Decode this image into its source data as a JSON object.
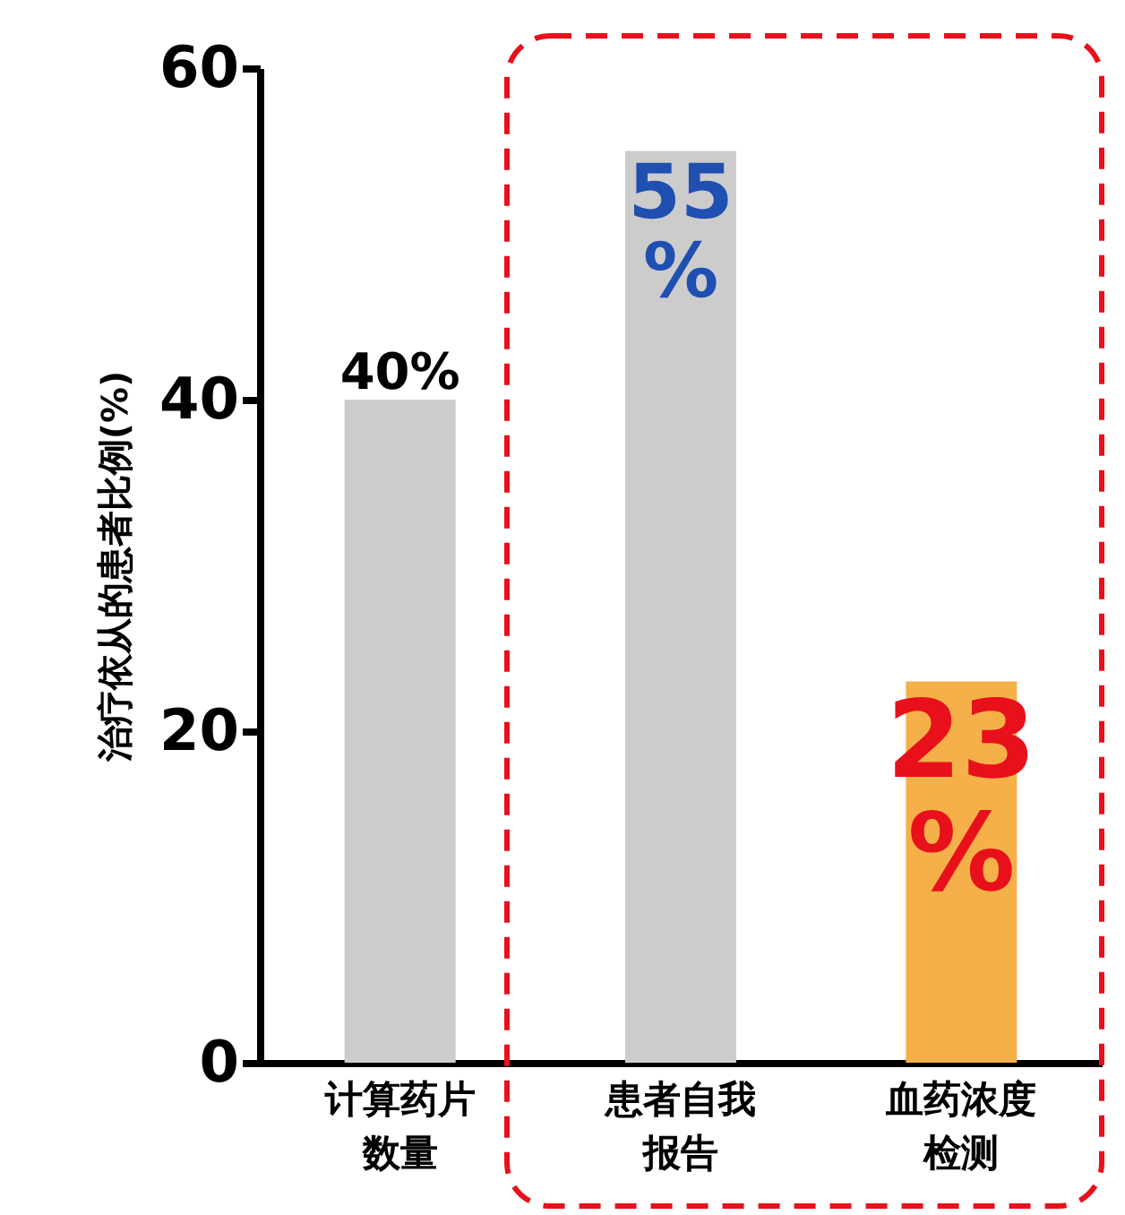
{
  "chart_data": {
    "type": "bar",
    "ylabel": "治疗依从的患者比例(%)",
    "categories": [
      "计算药片数量",
      "患者自我报告",
      "血药浓度检测"
    ],
    "values": [
      40,
      55,
      23
    ],
    "colors": [
      "#cccccc",
      "#cccccc",
      "#f5b04a"
    ],
    "value_labels": [
      "40%",
      "55%",
      "23%"
    ],
    "ylim": [
      0,
      60
    ],
    "yticks": [
      0,
      20,
      40,
      60
    ],
    "grid": false
  }
}
